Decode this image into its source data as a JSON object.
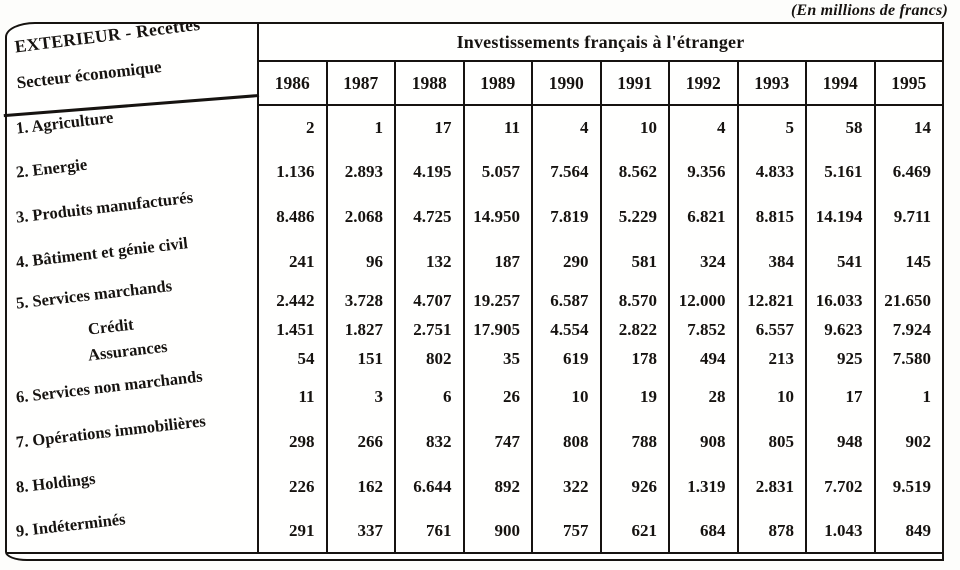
{
  "page": {
    "unit_note": "(En millions de francs)"
  },
  "colors": {
    "ink": "#161310",
    "paper": "#fdfdfb"
  },
  "table": {
    "corner": {
      "line1": "EXTERIEUR - Recettes",
      "line2": "Secteur économique"
    },
    "title": "Investissements français à l'étranger",
    "years": [
      "1986",
      "1987",
      "1988",
      "1989",
      "1990",
      "1991",
      "1992",
      "1993",
      "1994",
      "1995"
    ],
    "rows": [
      {
        "label": "1. Agriculture",
        "values": [
          "2",
          "1",
          "17",
          "11",
          "4",
          "10",
          "4",
          "5",
          "58",
          "14"
        ]
      },
      {
        "label": "2. Energie",
        "values": [
          "1.136",
          "2.893",
          "4.195",
          "5.057",
          "7.564",
          "8.562",
          "9.356",
          "4.833",
          "5.161",
          "6.469"
        ]
      },
      {
        "label": "3. Produits manufacturés",
        "values": [
          "8.486",
          "2.068",
          "4.725",
          "14.950",
          "7.819",
          "5.229",
          "6.821",
          "8.815",
          "14.194",
          "9.711"
        ]
      },
      {
        "label": "4. Bâtiment et génie civil",
        "values": [
          "241",
          "96",
          "132",
          "187",
          "290",
          "581",
          "324",
          "384",
          "541",
          "145"
        ]
      },
      {
        "label": "5. Services marchands",
        "values": [
          "2.442",
          "3.728",
          "4.707",
          "19.257",
          "6.587",
          "8.570",
          "12.000",
          "12.821",
          "16.033",
          "21.650"
        ],
        "subrows": [
          {
            "label": "Crédit",
            "values": [
              "1.451",
              "1.827",
              "2.751",
              "17.905",
              "4.554",
              "2.822",
              "7.852",
              "6.557",
              "9.623",
              "7.924"
            ]
          },
          {
            "label": "Assurances",
            "values": [
              "54",
              "151",
              "802",
              "35",
              "619",
              "178",
              "494",
              "213",
              "925",
              "7.580"
            ]
          }
        ]
      },
      {
        "label": "6. Services non marchands",
        "values": [
          "11",
          "3",
          "6",
          "26",
          "10",
          "19",
          "28",
          "10",
          "17",
          "1"
        ]
      },
      {
        "label": "7. Opérations immobilières",
        "values": [
          "298",
          "266",
          "832",
          "747",
          "808",
          "788",
          "908",
          "805",
          "948",
          "902"
        ]
      },
      {
        "label": "8. Holdings",
        "values": [
          "226",
          "162",
          "6.644",
          "892",
          "322",
          "926",
          "1.319",
          "2.831",
          "7.702",
          "9.519"
        ]
      },
      {
        "label": "9. Indéterminés",
        "values": [
          "291",
          "337",
          "761",
          "900",
          "757",
          "621",
          "684",
          "878",
          "1.043",
          "849"
        ]
      }
    ]
  }
}
